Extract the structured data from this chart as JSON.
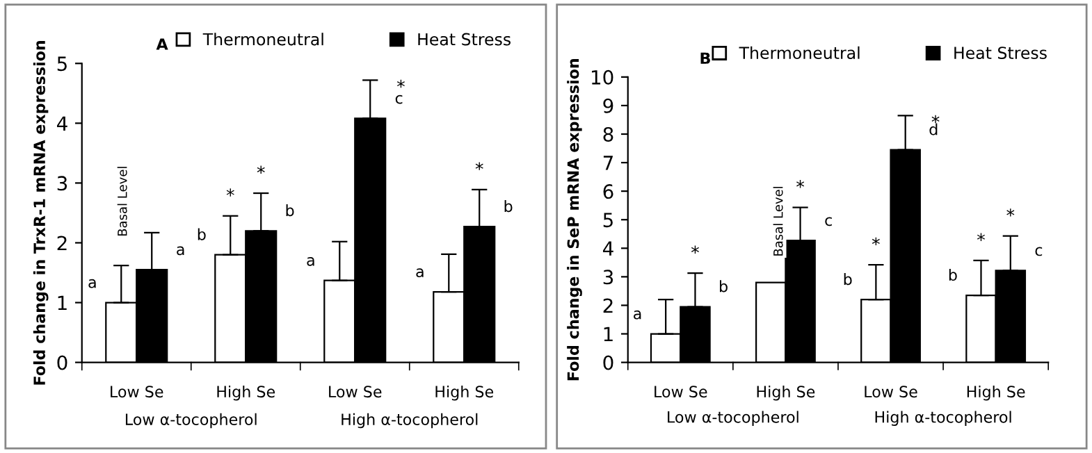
{
  "chart_data": [
    {
      "type": "bar",
      "title": "A",
      "ylabel": "Fold change in TrxR-1 mRNA expression",
      "categories": [
        "Low Se",
        "High Se",
        "Low Se",
        "High Se"
      ],
      "ylim": [
        0,
        5
      ],
      "yticks": [
        0,
        1,
        2,
        3,
        4,
        5
      ],
      "grid": false,
      "legend": "top",
      "series": [
        {
          "name": "Thermoneutral",
          "color": "#ffffff",
          "values": [
            1.0,
            1.8,
            1.37,
            1.18
          ],
          "errors": [
            [
              1.0,
              1.62
            ],
            [
              1.8,
              2.45
            ],
            [
              1.37,
              2.02
            ],
            [
              1.18,
              1.81
            ]
          ],
          "value_labels": [
            "a",
            "b",
            "a",
            "a"
          ]
        },
        {
          "name": "Heat Stress",
          "color": "#000000",
          "values": [
            1.55,
            2.2,
            4.08,
            2.27
          ],
          "errors": [
            [
              1.55,
              2.17
            ],
            [
              2.2,
              2.83
            ],
            [
              4.08,
              4.72
            ],
            [
              2.27,
              2.89
            ]
          ],
          "value_labels": [
            "a",
            "b",
            "c",
            "b"
          ]
        }
      ],
      "annotations": [
        "Low α-tocopherol",
        "High α-tocopherol",
        "Basal Level",
        "*",
        "*",
        "*",
        "*"
      ]
    },
    {
      "type": "bar",
      "title": "B",
      "ylabel": "Fold change in SeP mRNA expression",
      "categories": [
        "Low Se",
        "High Se",
        "Low Se",
        "High Se"
      ],
      "ylim": [
        0,
        10
      ],
      "yticks": [
        0,
        1,
        2,
        3,
        4,
        5,
        6,
        7,
        8,
        9,
        10
      ],
      "grid": false,
      "legend": "top",
      "series": [
        {
          "name": "Thermoneutral",
          "color": "#ffffff",
          "values": [
            1.0,
            2.8,
            2.2,
            2.35
          ],
          "errors": [
            [
              1.0,
              2.2
            ],
            null,
            [
              2.2,
              3.42
            ],
            [
              2.35,
              3.57
            ]
          ],
          "value_labels": [
            "a",
            null,
            "b",
            "b"
          ]
        },
        {
          "name": "Heat Stress",
          "color": "#000000",
          "values": [
            1.95,
            4.27,
            7.45,
            3.22
          ],
          "errors": [
            [
              1.95,
              3.13
            ],
            [
              4.27,
              5.43
            ],
            [
              7.45,
              8.65
            ],
            [
              3.22,
              4.43
            ]
          ],
          "value_labels": [
            "b",
            "c",
            "d",
            "c"
          ]
        }
      ],
      "annotations": [
        "Low α-tocopherol",
        "High α-tocopherol",
        "Basal Level",
        "*",
        "*",
        "*",
        "*",
        "*",
        "*"
      ]
    }
  ]
}
